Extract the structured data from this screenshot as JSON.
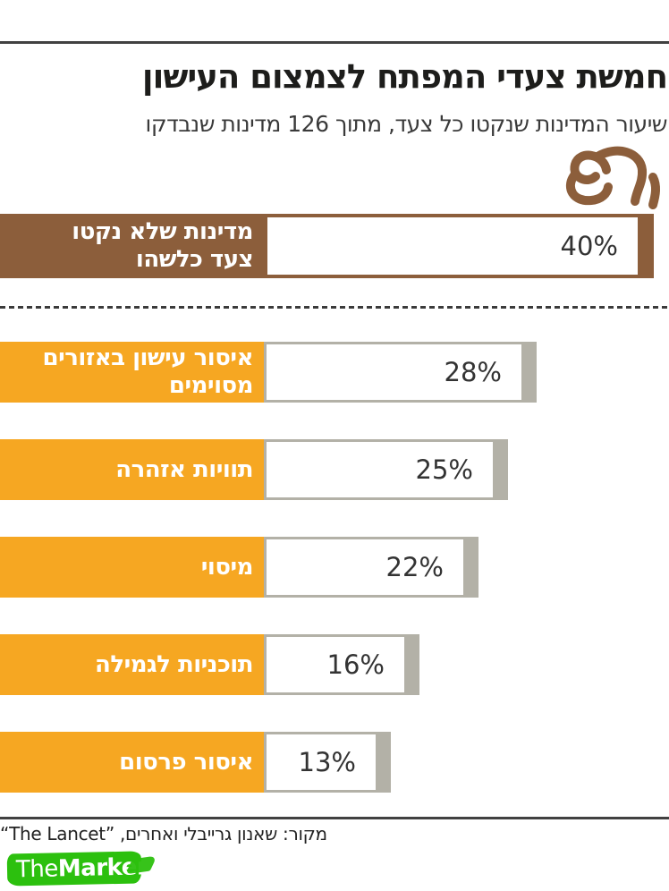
{
  "brand": {
    "the": "The",
    "marker": "Marker"
  },
  "chart_data": {
    "type": "bar",
    "orientation": "horizontal",
    "title": "חמשת צעדי המפתח לצמצום העישון",
    "subtitle": "שיעור המדינות שנקטו כל צעד, מתוך 126 מדינות שנבדקו",
    "unit": "%",
    "xlim": [
      0,
      42
    ],
    "bars": [
      {
        "label": "מדינות שלא נקטו צעד כלשהו",
        "label_lines": [
          "מדינות שלא נקטו",
          "צעד כלשהו"
        ],
        "value": 40,
        "group": "no_action"
      },
      {
        "label": "איסור עישון באזורים מסוימים",
        "label_lines": [
          "איסור עישון באזורים",
          "מסוימים"
        ],
        "value": 28,
        "group": "measure"
      },
      {
        "label": "תוויות אזהרה",
        "label_lines": [
          "תוויות אזהרה"
        ],
        "value": 25,
        "group": "measure"
      },
      {
        "label": "מיסוי",
        "label_lines": [
          "מיסוי"
        ],
        "value": 22,
        "group": "measure"
      },
      {
        "label": "תוכניות לגמילה",
        "label_lines": [
          "תוכניות לגמילה"
        ],
        "value": 16,
        "group": "measure"
      },
      {
        "label": "איסור פרסום",
        "label_lines": [
          "איסור פרסום"
        ],
        "value": 13,
        "group": "measure"
      }
    ],
    "source": "מקור: שאנון גרייבלי ואחרים, ”The Lancet“",
    "icons": [
      "smoke-icon"
    ],
    "colors": {
      "no_action": "#8c5e3b",
      "measure": "#f6a722",
      "bar_fill": "#ffffff",
      "tip_gray": "#b3b1a7",
      "value_text": "#333333",
      "brand_green": "#2cc00e"
    }
  }
}
